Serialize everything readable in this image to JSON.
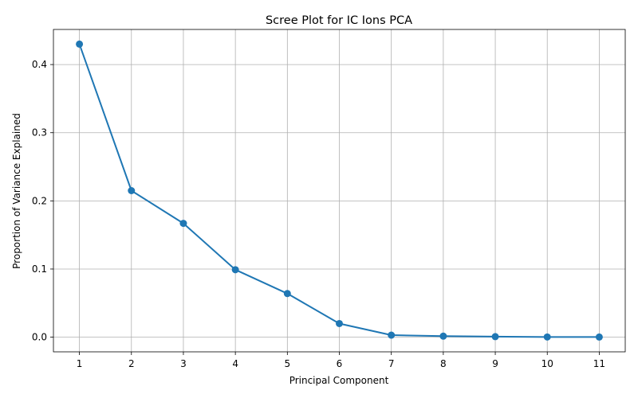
{
  "chart_data": {
    "type": "line",
    "title": "Scree Plot for IC Ions PCA",
    "xlabel": "Principal Component",
    "ylabel": "Proportion of Variance Explained",
    "x": [
      1,
      2,
      3,
      4,
      5,
      6,
      7,
      8,
      9,
      10,
      11
    ],
    "y": [
      0.43,
      0.215,
      0.167,
      0.099,
      0.064,
      0.02,
      0.003,
      0.0015,
      0.0008,
      0.0003,
      0.0002
    ],
    "xlim": [
      0.5,
      11.5
    ],
    "ylim": [
      -0.0215,
      0.4515
    ],
    "xticks": [
      1,
      2,
      3,
      4,
      5,
      6,
      7,
      8,
      9,
      10,
      11
    ],
    "yticks": [
      "0.0",
      "0.1",
      "0.2",
      "0.3",
      "0.4"
    ],
    "ytick_values": [
      0.0,
      0.1,
      0.2,
      0.3,
      0.4
    ],
    "grid": true,
    "marker": "circle",
    "color": "#1f77b4"
  }
}
